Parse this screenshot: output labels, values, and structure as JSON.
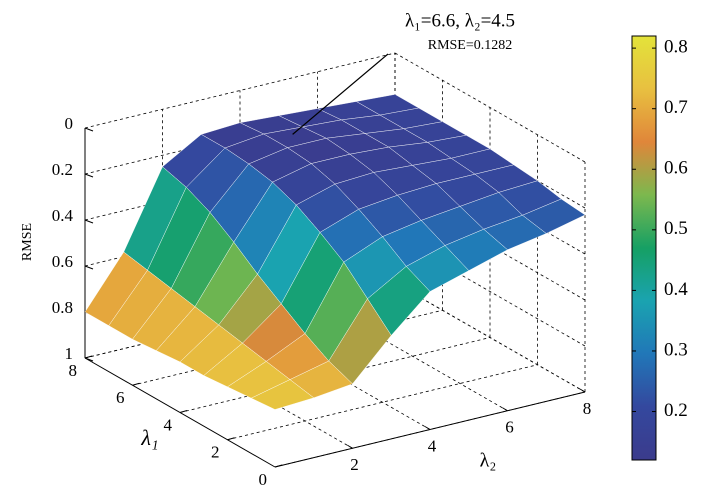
{
  "chart_data": {
    "type": "surface",
    "x_label": "λ₁",
    "y_label": "λ₂",
    "z_label": "RMSE",
    "x": [
      0,
      1,
      2,
      3,
      4,
      5,
      6,
      7,
      8
    ],
    "y": [
      0,
      1,
      2,
      3,
      4,
      5,
      6,
      7,
      8
    ],
    "z": [
      [
        0.75,
        0.74,
        0.72,
        0.55,
        0.4,
        0.35,
        0.3,
        0.27,
        0.23
      ],
      [
        0.76,
        0.72,
        0.68,
        0.45,
        0.35,
        0.3,
        0.27,
        0.25,
        0.22
      ],
      [
        0.77,
        0.7,
        0.62,
        0.35,
        0.28,
        0.25,
        0.23,
        0.21,
        0.2
      ],
      [
        0.78,
        0.68,
        0.55,
        0.28,
        0.22,
        0.2,
        0.19,
        0.19,
        0.19
      ],
      [
        0.78,
        0.66,
        0.48,
        0.22,
        0.17,
        0.16,
        0.17,
        0.18,
        0.18
      ],
      [
        0.79,
        0.64,
        0.4,
        0.18,
        0.14,
        0.14,
        0.15,
        0.17,
        0.18
      ],
      [
        0.8,
        0.62,
        0.33,
        0.16,
        0.13,
        0.13,
        0.15,
        0.17,
        0.18
      ],
      [
        0.8,
        0.6,
        0.28,
        0.15,
        0.13,
        0.14,
        0.15,
        0.17,
        0.18
      ],
      [
        0.8,
        0.58,
        0.25,
        0.15,
        0.14,
        0.15,
        0.16,
        0.17,
        0.18
      ]
    ],
    "xlim": [
      0,
      8
    ],
    "ylim": [
      0,
      8
    ],
    "zlim": [
      1,
      0
    ],
    "xticks": [
      0,
      2,
      4,
      6,
      8
    ],
    "yticks": [
      2,
      4,
      6,
      8
    ],
    "zticks": [
      0,
      0.2,
      0.4,
      0.6,
      0.8,
      1
    ],
    "grid": true,
    "colormap": [
      "#3b3b8c",
      "#34489e",
      "#2177b8",
      "#1aa3b0",
      "#16a064",
      "#7cb84e",
      "#e0863a",
      "#e8c040",
      "#e3e33a"
    ],
    "clim": [
      0.12,
      0.82
    ],
    "colorbar_ticks": [
      0.2,
      0.3,
      0.4,
      0.5,
      0.6,
      0.7,
      0.8
    ],
    "annotation": {
      "lines": [
        "λ₁=6.6,  λ₂=4.5",
        "RMSE=0.1282"
      ],
      "x": 6.6,
      "y": 4.5,
      "z": 0.1282
    }
  }
}
